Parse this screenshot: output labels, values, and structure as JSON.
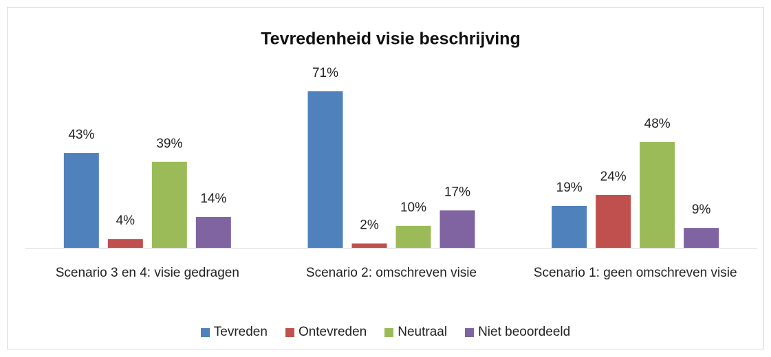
{
  "chart_data": {
    "type": "bar",
    "title": "Tevredenheid visie beschrijving",
    "categories": [
      "Scenario 3 en 4: visie gedragen",
      "Scenario 2: omschreven visie",
      "Scenario 1: geen omschreven visie"
    ],
    "series": [
      {
        "name": "Tevreden",
        "color": "#4f81bd",
        "values": [
          43,
          71,
          19
        ],
        "value_labels": [
          "43%",
          "71%",
          "19%"
        ]
      },
      {
        "name": "Ontevreden",
        "color": "#c0504d",
        "values": [
          4,
          2,
          24
        ],
        "value_labels": [
          "4%",
          "2%",
          "24%"
        ]
      },
      {
        "name": "Neutraal",
        "color": "#9bbb59",
        "values": [
          39,
          10,
          48
        ],
        "value_labels": [
          "39%",
          "10%",
          "48%"
        ]
      },
      {
        "name": "Niet beoordeeld",
        "color": "#8064a2",
        "values": [
          14,
          17,
          9
        ],
        "value_labels": [
          "14%",
          "17%",
          "9%"
        ]
      }
    ],
    "legend": "bottom"
  }
}
